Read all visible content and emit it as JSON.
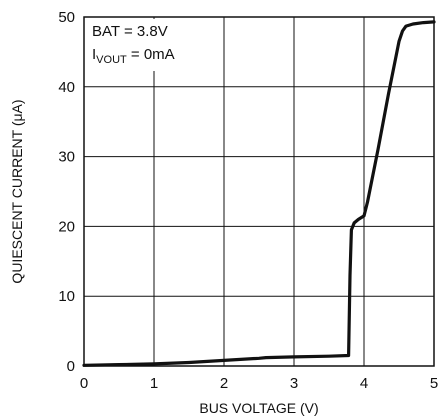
{
  "chart_data": {
    "type": "line",
    "xlabel": "BUS VOLTAGE (V)",
    "ylabel": "QUIESCENT CURRENT (μA)",
    "xlim": [
      0,
      5
    ],
    "ylim": [
      0,
      50
    ],
    "x_ticks": [
      "0",
      "1",
      "2",
      "3",
      "4",
      "5"
    ],
    "y_ticks": [
      "0",
      "10",
      "20",
      "30",
      "40",
      "50"
    ],
    "grid": true,
    "annotations": {
      "line1": "BAT = 3.8V",
      "line2_main": "I",
      "line2_sub": "VOUT",
      "line2_rest": " = 0mA"
    },
    "series": [
      {
        "color": "#111111",
        "x": [
          0,
          0.5,
          1.0,
          1.5,
          2.0,
          2.5,
          2.6,
          3.0,
          3.5,
          3.78,
          3.8,
          3.82,
          3.86,
          3.92,
          4.0,
          4.05,
          4.2,
          4.35,
          4.45,
          4.5,
          4.55,
          4.6,
          4.7,
          4.85,
          5.0
        ],
        "y": [
          0.1,
          0.2,
          0.3,
          0.5,
          0.8,
          1.1,
          1.2,
          1.3,
          1.4,
          1.5,
          13,
          19.5,
          20.5,
          21,
          21.5,
          23.5,
          31,
          39,
          44,
          46.5,
          48,
          48.7,
          49,
          49.2,
          49.3
        ]
      }
    ]
  }
}
